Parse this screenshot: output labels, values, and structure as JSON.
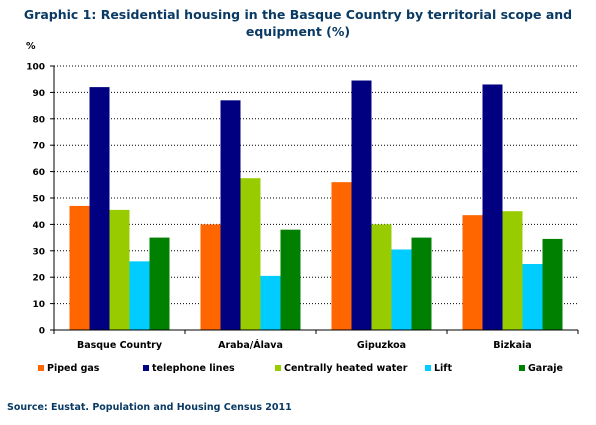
{
  "chart_data": {
    "type": "bar",
    "title": "Graphic 1: Residential housing in the Basque Country by territorial scope and equipment (%)",
    "ylabel": "%",
    "ylim": [
      0,
      100
    ],
    "yticks": [
      0,
      10,
      20,
      30,
      40,
      50,
      60,
      70,
      80,
      90,
      100
    ],
    "grid": true,
    "legend_position": "bottom",
    "categories": [
      "Basque Country",
      "Araba/Álava",
      "Gipuzkoa",
      "Bizkaia"
    ],
    "series": [
      {
        "name": "Piped gas",
        "color": "#ff6600",
        "values": [
          47,
          40,
          56,
          43.5
        ]
      },
      {
        "name": "telephone lines",
        "color": "#000080",
        "values": [
          92,
          87,
          94.5,
          93
        ]
      },
      {
        "name": "Centrally heated water",
        "color": "#99cc00",
        "values": [
          45.5,
          57.5,
          40,
          45
        ]
      },
      {
        "name": "Lift",
        "color": "#00ccff",
        "values": [
          26,
          20.5,
          30.5,
          25
        ]
      },
      {
        "name": "Garaje",
        "color": "#008000",
        "values": [
          35,
          38,
          35,
          34.5
        ]
      }
    ],
    "source": "Source: Eustat. Population and Housing Census 2011"
  }
}
